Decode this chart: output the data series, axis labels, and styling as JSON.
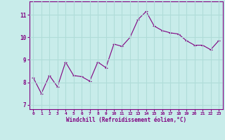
{
  "x": [
    0,
    1,
    2,
    3,
    4,
    5,
    6,
    7,
    8,
    9,
    10,
    11,
    12,
    13,
    14,
    15,
    16,
    17,
    18,
    19,
    20,
    21,
    22,
    23
  ],
  "y": [
    8.2,
    7.5,
    8.3,
    7.8,
    8.9,
    8.3,
    8.25,
    8.05,
    8.9,
    8.65,
    9.7,
    9.6,
    10.0,
    10.8,
    11.15,
    10.5,
    10.3,
    10.2,
    10.15,
    9.85,
    9.65,
    9.65,
    9.45,
    9.85
  ],
  "line_color": "#800080",
  "marker": "+",
  "bg_color": "#c8ecea",
  "grid_color": "#b0dcd8",
  "xlabel": "Windchill (Refroidissement éolien,°C)",
  "xlabel_color": "#800080",
  "tick_color": "#800080",
  "ylim": [
    6.8,
    11.6
  ],
  "xlim": [
    -0.5,
    23.5
  ],
  "yticks": [
    7,
    8,
    9,
    10,
    11
  ],
  "xtick_labels": [
    "0",
    "1",
    "2",
    "3",
    "4",
    "5",
    "6",
    "7",
    "8",
    "9",
    "10",
    "11",
    "12",
    "13",
    "14",
    "15",
    "16",
    "17",
    "18",
    "19",
    "20",
    "21",
    "22",
    "23"
  ]
}
